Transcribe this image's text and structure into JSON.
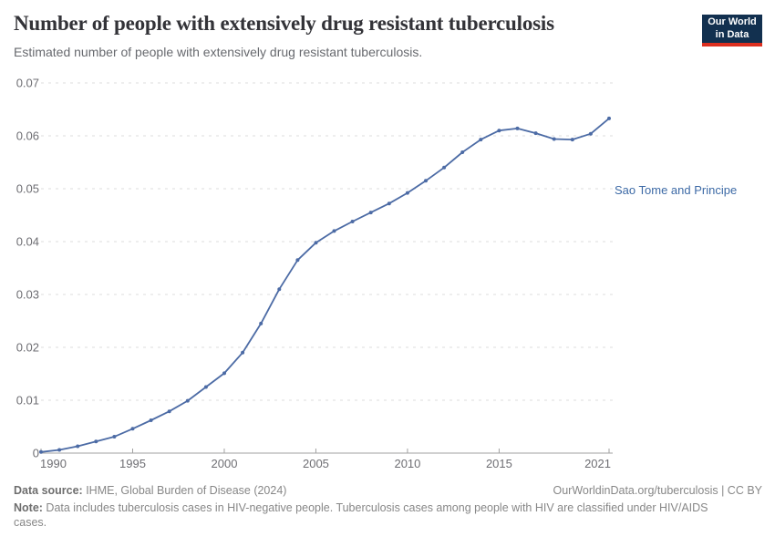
{
  "header": {
    "title": "Number of people with extensively drug resistant tuberculosis",
    "subtitle": "Estimated number of people with extensively drug resistant tuberculosis.",
    "logo": {
      "line1": "Our World",
      "line2": "in Data",
      "bg_color": "#12304f",
      "accent_color": "#dc2f1f"
    }
  },
  "chart_data": {
    "type": "line",
    "title": "Number of people with extensively drug resistant tuberculosis",
    "xlabel": "",
    "ylabel": "",
    "xlim": [
      1990,
      2021
    ],
    "ylim": [
      0,
      0.07
    ],
    "grid": "horizontal-dashed",
    "legend_position": "end-of-line-label",
    "x_ticks": [
      1990,
      1995,
      2000,
      2005,
      2010,
      2015,
      2021
    ],
    "x_tick_labels": [
      "1990",
      "1995",
      "2000",
      "2005",
      "2010",
      "2015",
      "2021"
    ],
    "y_ticks": [
      0,
      0.01,
      0.02,
      0.03,
      0.04,
      0.05,
      0.06,
      0.07
    ],
    "y_tick_labels": [
      "0",
      "0.01",
      "0.02",
      "0.03",
      "0.04",
      "0.05",
      "0.06",
      "0.07"
    ],
    "series": [
      {
        "name": "Sao Tome and Principe",
        "color": "#4c6ba5",
        "label_color": "#3d6aa6",
        "x": [
          1990,
          1991,
          1992,
          1993,
          1994,
          1995,
          1996,
          1997,
          1998,
          1999,
          2000,
          2001,
          2002,
          2003,
          2004,
          2005,
          2006,
          2007,
          2008,
          2009,
          2010,
          2011,
          2012,
          2013,
          2014,
          2015,
          2016,
          2017,
          2018,
          2019,
          2020,
          2021
        ],
        "values": [
          0.0002,
          0.0006,
          0.0013,
          0.0022,
          0.0031,
          0.0046,
          0.0062,
          0.0079,
          0.0099,
          0.0125,
          0.0151,
          0.019,
          0.0245,
          0.031,
          0.0365,
          0.0398,
          0.042,
          0.0438,
          0.0455,
          0.0472,
          0.0492,
          0.0515,
          0.054,
          0.0569,
          0.0593,
          0.061,
          0.0614,
          0.0605,
          0.0594,
          0.0593,
          0.0604,
          0.0633
        ]
      }
    ]
  },
  "footer": {
    "source_label": "Data source:",
    "source_text": " IHME, Global Burden of Disease (2024)",
    "license_text": "OurWorldinData.org/tuberculosis | CC BY",
    "note_label": "Note:",
    "note_text": " Data includes tuberculosis cases in HIV-negative people. Tuberculosis cases among people with HIV are classified under HIV/AIDS cases."
  }
}
